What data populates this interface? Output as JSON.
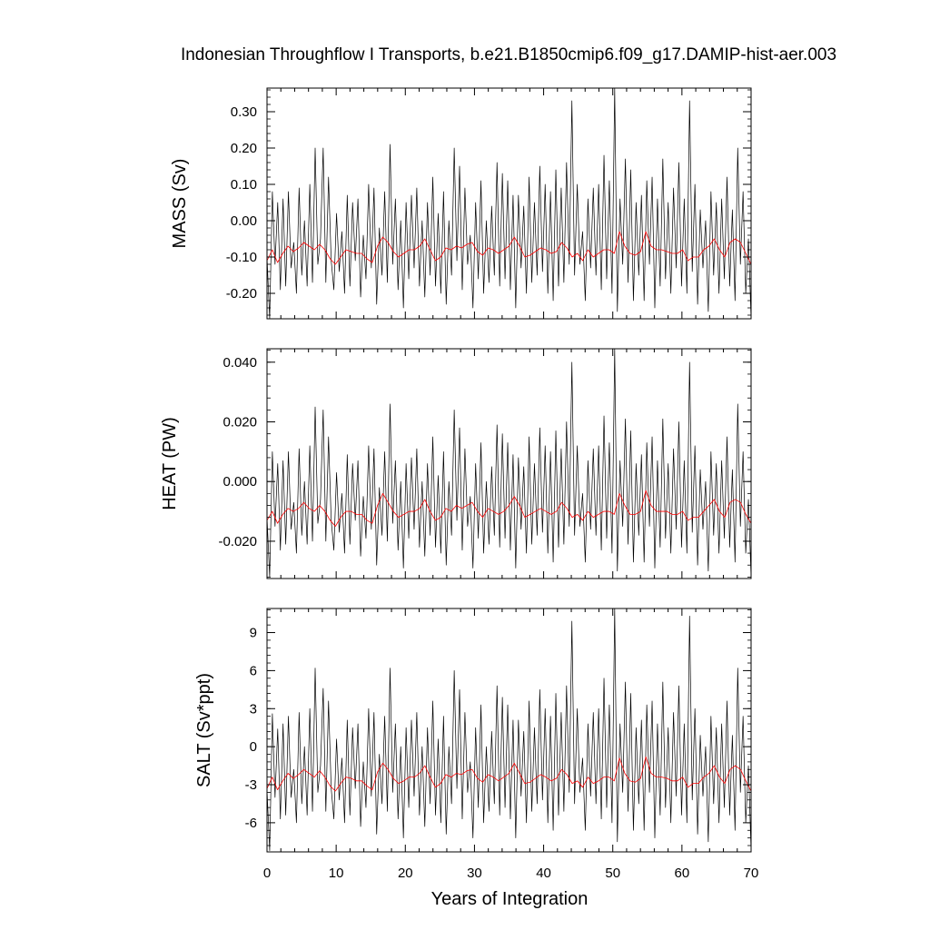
{
  "title": "Indonesian Throughflow I Transports, b.e21.B1850cmip6.f09_g17.DAMIP-hist-aer.003",
  "xlabel": "Years of Integration",
  "chart_data": [
    {
      "type": "line",
      "ylabel": "MASS (Sv)",
      "xlim": [
        0,
        70
      ],
      "ylim": [
        -0.27,
        0.365
      ],
      "x_ticks": [
        0,
        10,
        20,
        30,
        40,
        50,
        60,
        70
      ],
      "y_ticks": [
        0.3,
        0.2,
        0.1,
        0.0,
        -0.1,
        -0.2
      ],
      "y_tick_labels": [
        "0.30",
        "0.20",
        "0.10",
        "0.00",
        "-0.10",
        "-0.20"
      ],
      "monthly_colors": {
        "raw": "#000000",
        "smoothed": "#ff0000"
      },
      "series": [
        {
          "role": "monthly",
          "values": [
            -0.1,
            -0.27,
            0.08,
            -0.12,
            0.05,
            -0.19,
            0.06,
            -0.18,
            0.08,
            -0.13,
            -0.06,
            -0.2,
            0.09,
            -0.15,
            0.0,
            -0.18,
            0.1,
            -0.17,
            0.2,
            -0.12,
            -0.05,
            0.2,
            -0.17,
            0.12,
            -0.11,
            -0.19,
            0.02,
            -0.14,
            -0.03,
            -0.2,
            0.07,
            -0.18,
            0.05,
            -0.11,
            0.06,
            -0.21,
            -0.04,
            -0.16,
            0.1,
            -0.13,
            0.09,
            -0.23,
            -0.02,
            -0.15,
            0.08,
            -0.17,
            0.21,
            -0.12,
            0.06,
            -0.19,
            0.0,
            -0.24,
            0.05,
            -0.16,
            0.07,
            -0.13,
            0.09,
            -0.18,
            0.0,
            -0.21,
            0.05,
            -0.15,
            0.12,
            -0.18,
            0.02,
            -0.2,
            0.08,
            -0.23,
            0.0,
            -0.15,
            0.2,
            -0.11,
            0.15,
            -0.19,
            0.09,
            -0.12,
            -0.04,
            -0.24,
            0.05,
            -0.16,
            0.11,
            -0.2,
            0.0,
            -0.17,
            0.04,
            -0.15,
            0.16,
            -0.18,
            0.13,
            -0.16,
            0.11,
            -0.19,
            0.07,
            -0.24,
            0.07,
            -0.13,
            0.04,
            -0.2,
            0.12,
            -0.17,
            0.05,
            -0.15,
            0.15,
            -0.14,
            0.1,
            -0.2,
            0.08,
            -0.22,
            0.14,
            -0.18,
            0.09,
            -0.17,
            0.16,
            -0.12,
            0.33,
            -0.15,
            0.1,
            -0.12,
            -0.03,
            -0.22,
            0.06,
            -0.13,
            0.09,
            -0.15,
            0.1,
            -0.19,
            0.18,
            -0.16,
            0.11,
            -0.2,
            0.365,
            -0.25,
            0.06,
            -0.12,
            0.17,
            -0.17,
            0.14,
            -0.22,
            0.05,
            -0.15,
            0.07,
            -0.22,
            0.11,
            -0.12,
            0.12,
            -0.24,
            0.06,
            -0.18,
            0.17,
            -0.16,
            0.05,
            -0.2,
            0.09,
            -0.13,
            0.16,
            -0.18,
            0.06,
            -0.2,
            0.33,
            -0.14,
            0.1,
            -0.23,
            0.03,
            -0.13,
            0.0,
            -0.25,
            0.08,
            -0.15,
            0.05,
            -0.2,
            0.06,
            -0.16,
            0.12,
            -0.18,
            0.03,
            -0.22,
            0.2,
            -0.12,
            0.08,
            -0.2,
            -0.05,
            -0.27
          ]
        },
        {
          "role": "smoothed",
          "values": [
            -0.11,
            -0.08,
            -0.115,
            -0.09,
            -0.07,
            -0.085,
            -0.075,
            -0.06,
            -0.07,
            -0.08,
            -0.065,
            -0.08,
            -0.105,
            -0.12,
            -0.1,
            -0.08,
            -0.085,
            -0.09,
            -0.09,
            -0.105,
            -0.115,
            -0.07,
            -0.045,
            -0.06,
            -0.085,
            -0.1,
            -0.09,
            -0.08,
            -0.08,
            -0.07,
            -0.05,
            -0.08,
            -0.11,
            -0.1,
            -0.075,
            -0.08,
            -0.07,
            -0.075,
            -0.065,
            -0.06,
            -0.085,
            -0.095,
            -0.075,
            -0.08,
            -0.09,
            -0.08,
            -0.07,
            -0.045,
            -0.07,
            -0.1,
            -0.095,
            -0.085,
            -0.075,
            -0.08,
            -0.09,
            -0.085,
            -0.06,
            -0.075,
            -0.1,
            -0.09,
            -0.11,
            -0.08,
            -0.1,
            -0.09,
            -0.08,
            -0.08,
            -0.09,
            -0.03,
            -0.07,
            -0.09,
            -0.095,
            -0.085,
            -0.03,
            -0.07,
            -0.08,
            -0.08,
            -0.085,
            -0.09,
            -0.09,
            -0.08,
            -0.11,
            -0.1,
            -0.1,
            -0.08,
            -0.07,
            -0.05,
            -0.08,
            -0.1,
            -0.06,
            -0.05,
            -0.06,
            -0.09,
            -0.12
          ]
        }
      ]
    },
    {
      "type": "line",
      "ylabel": "HEAT (PW)",
      "xlim": [
        0,
        70
      ],
      "ylim": [
        -0.0325,
        0.0445
      ],
      "x_ticks": [
        0,
        10,
        20,
        30,
        40,
        50,
        60,
        70
      ],
      "y_ticks": [
        0.04,
        0.02,
        0.0,
        -0.02
      ],
      "y_tick_labels": [
        "0.040",
        "0.020",
        "0.000",
        "-0.020"
      ],
      "series": [
        {
          "role": "monthly",
          "values": [
            -0.012,
            -0.032,
            0.01,
            -0.015,
            0.006,
            -0.023,
            0.007,
            -0.021,
            0.01,
            -0.016,
            -0.007,
            -0.024,
            0.011,
            -0.018,
            0.0,
            -0.021,
            0.012,
            -0.02,
            0.025,
            -0.014,
            -0.006,
            0.024,
            -0.02,
            0.015,
            -0.013,
            -0.023,
            0.003,
            -0.017,
            -0.004,
            -0.024,
            0.009,
            -0.021,
            0.006,
            -0.013,
            0.007,
            -0.025,
            -0.005,
            -0.019,
            0.012,
            -0.016,
            0.011,
            -0.028,
            -0.002,
            -0.018,
            0.01,
            -0.02,
            0.026,
            -0.014,
            0.007,
            -0.023,
            0.0,
            -0.029,
            0.006,
            -0.019,
            0.008,
            -0.016,
            0.011,
            -0.022,
            0.0,
            -0.025,
            0.006,
            -0.018,
            0.015,
            -0.022,
            0.002,
            -0.024,
            0.01,
            -0.028,
            0.0,
            -0.018,
            0.024,
            -0.013,
            0.018,
            -0.023,
            0.011,
            -0.015,
            -0.005,
            -0.029,
            0.006,
            -0.019,
            0.013,
            -0.024,
            0.0,
            -0.021,
            0.005,
            -0.018,
            0.019,
            -0.022,
            0.016,
            -0.019,
            0.013,
            -0.023,
            0.009,
            -0.029,
            0.008,
            -0.016,
            0.005,
            -0.024,
            0.015,
            -0.021,
            0.006,
            -0.018,
            0.018,
            -0.017,
            0.012,
            -0.024,
            0.01,
            -0.027,
            0.017,
            -0.022,
            0.011,
            -0.021,
            0.02,
            -0.015,
            0.04,
            -0.018,
            0.012,
            -0.015,
            -0.004,
            -0.027,
            0.007,
            -0.016,
            0.011,
            -0.018,
            0.012,
            -0.023,
            0.022,
            -0.019,
            0.013,
            -0.024,
            0.0445,
            -0.03,
            0.007,
            -0.015,
            0.021,
            -0.021,
            0.017,
            -0.027,
            0.006,
            -0.018,
            0.009,
            -0.027,
            0.013,
            -0.015,
            0.015,
            -0.029,
            0.007,
            -0.022,
            0.021,
            -0.019,
            0.006,
            -0.024,
            0.011,
            -0.016,
            0.02,
            -0.022,
            0.007,
            -0.024,
            0.04,
            -0.017,
            0.012,
            -0.028,
            0.004,
            -0.016,
            0.0,
            -0.03,
            0.01,
            -0.018,
            0.006,
            -0.024,
            0.007,
            -0.019,
            0.015,
            -0.022,
            0.004,
            -0.027,
            0.026,
            -0.015,
            0.01,
            -0.024,
            -0.006,
            -0.032
          ]
        },
        {
          "role": "smoothed",
          "values": [
            -0.013,
            -0.01,
            -0.014,
            -0.011,
            -0.009,
            -0.01,
            -0.009,
            -0.007,
            -0.009,
            -0.01,
            -0.008,
            -0.01,
            -0.013,
            -0.015,
            -0.012,
            -0.01,
            -0.01,
            -0.011,
            -0.011,
            -0.013,
            -0.014,
            -0.008,
            -0.004,
            -0.007,
            -0.01,
            -0.012,
            -0.011,
            -0.01,
            -0.01,
            -0.009,
            -0.006,
            -0.01,
            -0.013,
            -0.012,
            -0.009,
            -0.01,
            -0.008,
            -0.009,
            -0.008,
            -0.007,
            -0.01,
            -0.012,
            -0.009,
            -0.01,
            -0.011,
            -0.01,
            -0.008,
            -0.005,
            -0.008,
            -0.012,
            -0.011,
            -0.01,
            -0.009,
            -0.01,
            -0.011,
            -0.01,
            -0.007,
            -0.009,
            -0.012,
            -0.011,
            -0.013,
            -0.01,
            -0.012,
            -0.011,
            -0.01,
            -0.01,
            -0.011,
            -0.004,
            -0.008,
            -0.011,
            -0.011,
            -0.01,
            -0.003,
            -0.008,
            -0.01,
            -0.01,
            -0.01,
            -0.011,
            -0.011,
            -0.01,
            -0.013,
            -0.012,
            -0.012,
            -0.01,
            -0.008,
            -0.006,
            -0.01,
            -0.012,
            -0.007,
            -0.006,
            -0.007,
            -0.011,
            -0.014
          ]
        }
      ]
    },
    {
      "type": "line",
      "ylabel": "SALT (Sv*ppt)",
      "xlim": [
        0,
        70
      ],
      "ylim": [
        -8.3,
        10.9
      ],
      "x_ticks": [
        0,
        10,
        20,
        30,
        40,
        50,
        60,
        70
      ],
      "x_tick_labels": [
        "0",
        "10",
        "20",
        "30",
        "40",
        "50",
        "60",
        "70"
      ],
      "y_ticks": [
        9,
        6,
        3,
        0,
        -3,
        -6
      ],
      "y_tick_labels": [
        "9",
        "6",
        "3",
        "0",
        "-3",
        "-6"
      ],
      "series": [
        {
          "role": "monthly",
          "values": [
            -3.4,
            -8.2,
            2.6,
            -4.0,
            1.4,
            -5.7,
            1.8,
            -5.4,
            2.4,
            -4.0,
            -1.8,
            -6.0,
            2.7,
            -4.5,
            0.0,
            -5.4,
            3.0,
            -5.1,
            6.2,
            -3.6,
            -1.5,
            4.6,
            -5.1,
            3.6,
            -3.3,
            -5.7,
            0.6,
            -4.2,
            -0.9,
            -6.0,
            2.1,
            -5.4,
            1.5,
            -3.3,
            1.8,
            -6.3,
            -1.2,
            -4.8,
            3.0,
            -3.9,
            2.7,
            -6.9,
            -0.6,
            -4.5,
            2.4,
            -5.1,
            6.2,
            -3.6,
            1.8,
            -5.7,
            0.0,
            -7.2,
            1.5,
            -4.8,
            2.1,
            -3.9,
            2.7,
            -5.4,
            0.0,
            -6.3,
            1.5,
            -4.5,
            3.6,
            -5.4,
            0.6,
            -6.0,
            2.4,
            -6.9,
            0.0,
            -4.5,
            6.0,
            -3.3,
            4.5,
            -5.7,
            2.7,
            -3.6,
            -1.2,
            -7.2,
            1.5,
            -4.8,
            3.3,
            -6.0,
            0.0,
            -5.1,
            1.2,
            -4.5,
            4.8,
            -5.4,
            3.9,
            -4.8,
            3.3,
            -5.7,
            2.1,
            -7.2,
            2.1,
            -3.9,
            1.2,
            -6.0,
            3.6,
            -5.1,
            1.5,
            -4.5,
            4.5,
            -4.2,
            3.0,
            -6.0,
            2.4,
            -6.6,
            4.2,
            -5.4,
            2.7,
            -5.1,
            4.8,
            -3.6,
            9.9,
            -4.5,
            3.0,
            -3.6,
            -0.9,
            -6.6,
            1.8,
            -3.9,
            2.7,
            -4.5,
            3.0,
            -5.7,
            5.4,
            -4.8,
            3.3,
            -6.0,
            10.9,
            -7.5,
            1.8,
            -3.6,
            5.1,
            -5.1,
            4.2,
            -6.6,
            1.5,
            -4.5,
            2.1,
            -6.6,
            3.3,
            -3.6,
            3.6,
            -7.2,
            1.8,
            -5.4,
            5.1,
            -4.8,
            1.5,
            -6.0,
            2.7,
            -3.9,
            4.8,
            -5.4,
            1.8,
            -6.0,
            10.3,
            -4.2,
            3.0,
            -6.9,
            0.9,
            -3.9,
            0.0,
            -7.5,
            2.4,
            -4.5,
            1.5,
            -6.0,
            1.8,
            -4.8,
            3.6,
            -5.4,
            0.9,
            -6.6,
            6.2,
            -3.6,
            2.4,
            -6.0,
            -1.5,
            -8.2
          ]
        },
        {
          "role": "smoothed",
          "values": [
            -3.3,
            -2.4,
            -3.4,
            -2.7,
            -2.1,
            -2.5,
            -2.2,
            -1.8,
            -2.1,
            -2.4,
            -1.9,
            -2.4,
            -3.1,
            -3.5,
            -2.9,
            -2.4,
            -2.5,
            -2.7,
            -2.7,
            -3.1,
            -3.4,
            -2.0,
            -1.3,
            -1.8,
            -2.5,
            -2.9,
            -2.7,
            -2.4,
            -2.4,
            -2.1,
            -1.5,
            -2.4,
            -3.2,
            -2.9,
            -2.2,
            -2.4,
            -2.1,
            -2.2,
            -1.9,
            -1.8,
            -2.5,
            -2.8,
            -2.2,
            -2.4,
            -2.7,
            -2.4,
            -2.1,
            -1.3,
            -2.1,
            -2.9,
            -2.8,
            -2.5,
            -2.2,
            -2.4,
            -2.7,
            -2.5,
            -1.8,
            -2.2,
            -2.9,
            -2.7,
            -3.2,
            -2.4,
            -2.9,
            -2.7,
            -2.4,
            -2.4,
            -2.7,
            -0.9,
            -2.1,
            -2.7,
            -2.8,
            -2.5,
            -0.8,
            -2.1,
            -2.4,
            -2.4,
            -2.5,
            -2.7,
            -2.7,
            -2.4,
            -3.2,
            -2.9,
            -2.9,
            -2.4,
            -2.1,
            -1.5,
            -2.4,
            -2.9,
            -1.8,
            -1.5,
            -1.8,
            -2.7,
            -3.5
          ]
        }
      ]
    }
  ]
}
